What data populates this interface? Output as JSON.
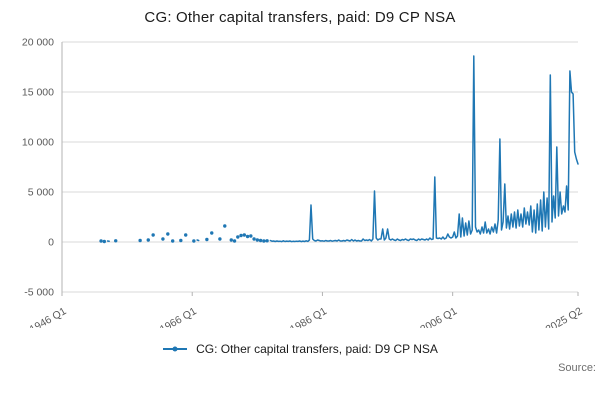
{
  "header": {
    "title": "CG: Other capital transfers, paid: D9 CP NSA"
  },
  "legend": {
    "label": "CG: Other capital transfers, paid: D9 CP NSA"
  },
  "footer": {
    "source_label": "Source:"
  },
  "chart_data": {
    "type": "line",
    "title": "CG: Other capital transfers, paid: D9 CP NSA",
    "xlabel": "",
    "ylabel": "",
    "frequency": "quarterly",
    "start_period": "1946 Q1",
    "end_period": "2025 Q2",
    "ylim": [
      -5000,
      20000
    ],
    "grid": true,
    "legend_position": "bottom",
    "colors": {
      "line": "#1f77b4",
      "grid": "#d9d9d9",
      "axis": "#b3b3b3",
      "tick_label": "#595959"
    },
    "y_ticks": [
      {
        "value": 20000,
        "label": "20 000"
      },
      {
        "value": 15000,
        "label": "15 000"
      },
      {
        "value": 10000,
        "label": "10 000"
      },
      {
        "value": 5000,
        "label": "5 000"
      },
      {
        "value": 0,
        "label": "0"
      },
      {
        "value": -5000,
        "label": "-5 000"
      }
    ],
    "x_ticks": [
      {
        "index": 0,
        "label": "1946 Q1"
      },
      {
        "index": 80,
        "label": "1966 Q1"
      },
      {
        "index": 160,
        "label": "1986 Q1"
      },
      {
        "index": 240,
        "label": "2006 Q1"
      },
      {
        "index": 317,
        "label": "2025 Q2"
      }
    ],
    "values": [
      null,
      null,
      null,
      null,
      null,
      null,
      null,
      null,
      null,
      null,
      null,
      null,
      null,
      null,
      null,
      null,
      null,
      null,
      null,
      null,
      null,
      null,
      null,
      null,
      100,
      null,
      50,
      null,
      100,
      80,
      null,
      null,
      null,
      120,
      null,
      null,
      null,
      null,
      null,
      null,
      null,
      null,
      null,
      null,
      null,
      null,
      null,
      null,
      150,
      null,
      null,
      null,
      null,
      200,
      null,
      null,
      700,
      null,
      null,
      null,
      null,
      null,
      300,
      null,
      null,
      800,
      null,
      null,
      100,
      null,
      null,
      null,
      null,
      150,
      null,
      null,
      700,
      null,
      null,
      null,
      null,
      100,
      null,
      200,
      150,
      null,
      null,
      null,
      null,
      250,
      null,
      null,
      900,
      null,
      null,
      null,
      null,
      300,
      null,
      null,
      1600,
      null,
      null,
      null,
      200,
      null,
      100,
      null,
      500,
      null,
      650,
      null,
      700,
      null,
      550,
      null,
      600,
      null,
      300,
      null,
      200,
      null,
      150,
      null,
      100,
      null,
      120,
      null,
      150,
      80,
      100,
      50,
      100,
      60,
      80,
      40,
      120,
      50,
      90,
      60,
      100,
      40,
      70,
      50,
      80,
      60,
      100,
      40,
      90,
      50,
      120,
      60,
      200,
      3700,
      300,
      150,
      100,
      200,
      150,
      100,
      120,
      80,
      150,
      100,
      100,
      150,
      80,
      120,
      150,
      100,
      200,
      100,
      100,
      150,
      100,
      200,
      150,
      100,
      250,
      100,
      200,
      100,
      150,
      100,
      100,
      300,
      150,
      200,
      150,
      250,
      100,
      300,
      5100,
      400,
      200,
      300,
      300,
      1300,
      200,
      400,
      1300,
      300,
      200,
      300,
      200,
      150,
      300,
      200,
      150,
      250,
      200,
      300,
      200,
      150,
      300,
      250,
      300,
      200,
      150,
      300,
      200,
      300,
      250,
      200,
      300,
      200,
      400,
      250,
      300,
      6500,
      400,
      350,
      400,
      300,
      500,
      300,
      400,
      800,
      500,
      400,
      500,
      1000,
      400,
      600,
      2800,
      500,
      2400,
      600,
      1900,
      700,
      2100,
      800,
      1200,
      18600,
      1500,
      1000,
      1200,
      800,
      1500,
      900,
      2000,
      900,
      1300,
      800,
      1500,
      1000,
      1800,
      900,
      2200,
      10300,
      1200,
      2000,
      5800,
      1400,
      2600,
      1300,
      2800,
      1500,
      3000,
      1400,
      3200,
      1600,
      2800,
      1500,
      3400,
      1800,
      3000,
      1700,
      3600,
      1000,
      3200,
      900,
      3800,
      1200,
      4200,
      1100,
      5000,
      1500,
      4400,
      1300,
      16700,
      2000,
      4600,
      2400,
      9500,
      2600,
      5000,
      2800,
      3600,
      3000,
      5600,
      3200,
      17100,
      15000,
      14800,
      9000,
      8300,
      7800
    ]
  }
}
